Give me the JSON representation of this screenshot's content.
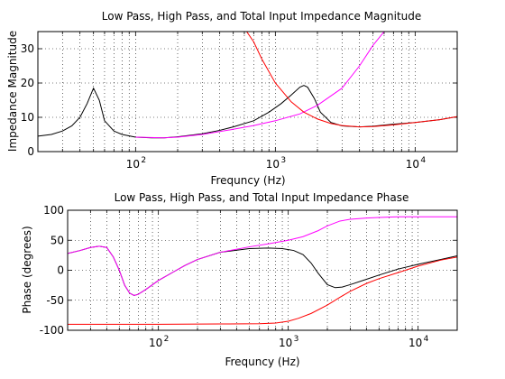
{
  "chart_data": [
    {
      "type": "line",
      "title": "Low Pass, High Pass, and Total Input Impedance Magnitude",
      "xlabel": "Frequncy (Hz)",
      "ylabel": "Impedance Magnitude",
      "xscale": "log",
      "xlim": [
        20,
        20000
      ],
      "ylim": [
        0,
        35
      ],
      "yticks": [
        0,
        10,
        20,
        30
      ],
      "xticks": [
        {
          "base": "10",
          "exp": "2",
          "value": 100
        },
        {
          "base": "10",
          "exp": "3",
          "value": 1000
        },
        {
          "base": "10",
          "exp": "4",
          "value": 10000
        }
      ],
      "grid": true,
      "series": [
        {
          "color": "#000000",
          "x": [
            20,
            25,
            30,
            35,
            40,
            45,
            50,
            55,
            60,
            70,
            80,
            100,
            130,
            160,
            200,
            300,
            400,
            500,
            700,
            900,
            1100,
            1300,
            1500,
            1600,
            1700,
            1900,
            2100,
            2500,
            3000,
            4000,
            5000,
            7000,
            10000,
            15000,
            20000
          ],
          "y": [
            4.5,
            5,
            6,
            7.5,
            10,
            14,
            18.5,
            15,
            9,
            6,
            5,
            4.2,
            4,
            4,
            4.3,
            5.2,
            6.2,
            7.2,
            9,
            11.5,
            14,
            16.5,
            18.8,
            19.3,
            18.8,
            15.5,
            11.5,
            8.5,
            7.5,
            7.2,
            7.4,
            8,
            8.5,
            9.3,
            10.2
          ]
        },
        {
          "color": "#ff00ff",
          "x": [
            100,
            160,
            200,
            300,
            500,
            700,
            1000,
            1500,
            2000,
            3000,
            4000,
            5000,
            6000,
            6500
          ],
          "y": [
            4.2,
            4,
            4.2,
            5,
            6.5,
            7.6,
            9,
            11,
            13.5,
            18.5,
            25,
            31,
            35,
            38
          ]
        },
        {
          "color": "#ff0000",
          "x": [
            600,
            700,
            800,
            1000,
            1300,
            1600,
            2000,
            2500,
            3000,
            4000,
            5000,
            7000,
            10000,
            15000,
            20000
          ],
          "y": [
            36,
            32,
            27,
            20,
            14.5,
            11.5,
            9.5,
            8.2,
            7.6,
            7.2,
            7.3,
            7.8,
            8.5,
            9.3,
            10.2
          ]
        }
      ]
    },
    {
      "type": "line",
      "title": "Low Pass, High Pass, and Total Input Impedance Phase",
      "xlabel": "Frequncy (Hz)",
      "ylabel": "Phase (degrees)",
      "xscale": "log",
      "xlim": [
        20,
        20000
      ],
      "ylim": [
        -100,
        100
      ],
      "yticks": [
        -100,
        -50,
        0,
        50,
        100
      ],
      "xticks": [
        {
          "base": "10",
          "exp": "2",
          "value": 100
        },
        {
          "base": "10",
          "exp": "3",
          "value": 1000
        },
        {
          "base": "10",
          "exp": "4",
          "value": 10000
        }
      ],
      "grid": true,
      "series": [
        {
          "color": "#000000",
          "x": [
            20,
            25,
            30,
            35,
            40,
            45,
            50,
            55,
            60,
            65,
            70,
            80,
            100,
            130,
            160,
            200,
            300,
            500,
            700,
            900,
            1100,
            1300,
            1500,
            1700,
            2000,
            2300,
            2600,
            3000,
            4000,
            5000,
            7000,
            10000,
            15000,
            20000
          ],
          "y": [
            28,
            33,
            38,
            40,
            38,
            22,
            0,
            -25,
            -38,
            -42,
            -40,
            -32,
            -17,
            -3,
            8,
            18,
            30,
            36,
            37,
            36,
            33,
            26,
            12,
            -5,
            -24,
            -29,
            -28,
            -24,
            -15,
            -8,
            2,
            10,
            18,
            24
          ]
        },
        {
          "color": "#ff00ff",
          "x": [
            20,
            25,
            30,
            35,
            40,
            45,
            50,
            55,
            60,
            65,
            70,
            80,
            100,
            130,
            160,
            200,
            300,
            500,
            700,
            1000,
            1300,
            1700,
            2000,
            2500,
            3000,
            4000,
            5000,
            7000,
            10000,
            15000,
            20000
          ],
          "y": [
            28,
            33,
            38,
            40,
            38,
            22,
            0,
            -25,
            -38,
            -42,
            -40,
            -32,
            -17,
            -3,
            8,
            18,
            30,
            39,
            44,
            50,
            56,
            66,
            74,
            82,
            85,
            87,
            88,
            89,
            89,
            89,
            89
          ]
        },
        {
          "color": "#ff0000",
          "x": [
            20,
            50,
            100,
            300,
            600,
            800,
            1000,
            1200,
            1500,
            2000,
            2500,
            3000,
            4000,
            5000,
            7000,
            10000,
            15000,
            20000
          ],
          "y": [
            -90,
            -90,
            -90,
            -89.5,
            -89,
            -88,
            -85,
            -80,
            -72,
            -58,
            -45,
            -35,
            -22,
            -14,
            -4,
            7,
            17,
            22
          ]
        }
      ]
    }
  ]
}
